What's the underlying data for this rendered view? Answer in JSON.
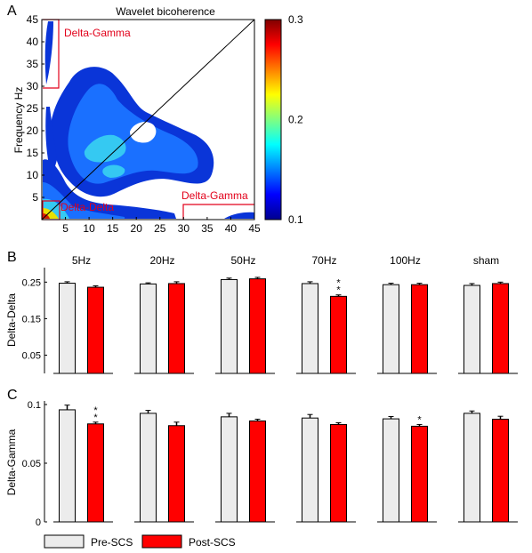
{
  "panels": {
    "a": "A",
    "b": "B",
    "c": "C"
  },
  "colors": {
    "pre": "#ececec",
    "post": "#ff0000",
    "region": "#e2001a",
    "axis": "#000000"
  },
  "heatmap": {
    "title": "Wavelet bicoherence",
    "ylabel": "Frequency Hz",
    "xticks": [
      "5",
      "10",
      "15",
      "20",
      "25",
      "30",
      "35",
      "40",
      "45"
    ],
    "yticks": [
      "5",
      "10",
      "15",
      "20",
      "25",
      "30",
      "35",
      "40",
      "45"
    ],
    "colorbar_ticks": [
      "0.3",
      "0.2",
      "0.1"
    ],
    "colorbar_range": [
      0.1,
      0.3
    ],
    "regions": {
      "gamma_top": "Delta-Gamma",
      "gamma_right": "Delta-Gamma",
      "delta_delta": "Delta-Delta"
    }
  },
  "legend": {
    "pre": "Pre-SCS",
    "post": "Post-SCS"
  },
  "chart_data": [
    {
      "type": "heatmap",
      "title": "Wavelet bicoherence",
      "xlabel": "",
      "ylabel": "Frequency Hz",
      "xlim": [
        0,
        45
      ],
      "ylim": [
        0,
        45
      ],
      "colorbar_range": [
        0.1,
        0.3
      ],
      "regions": [
        {
          "label": "Delta-Gamma",
          "x": [
            0,
            4
          ],
          "y": [
            30,
            45
          ]
        },
        {
          "label": "Delta-Gamma",
          "x": [
            30,
            45
          ],
          "y": [
            0,
            4
          ]
        },
        {
          "label": "Delta-Delta",
          "x": [
            0,
            4
          ],
          "y": [
            0,
            4
          ]
        }
      ]
    },
    {
      "type": "bar",
      "ylabel": "Delta-Delta",
      "categories": [
        "5Hz",
        "20Hz",
        "50Hz",
        "70Hz",
        "100Hz",
        "sham"
      ],
      "yticks": [
        "0.25",
        "0.15",
        "0.05"
      ],
      "ylim": [
        0,
        0.28
      ],
      "series": [
        {
          "name": "Pre-SCS",
          "values": [
            0.247,
            0.245,
            0.257,
            0.246,
            0.243,
            0.241
          ],
          "errors": [
            0.004,
            0.003,
            0.004,
            0.005,
            0.004,
            0.005
          ]
        },
        {
          "name": "Post-SCS",
          "values": [
            0.236,
            0.246,
            0.259,
            0.211,
            0.243,
            0.246
          ],
          "errors": [
            0.004,
            0.005,
            0.004,
            0.004,
            0.004,
            0.004
          ]
        }
      ],
      "significance": [
        null,
        null,
        null,
        "* *",
        null,
        null
      ]
    },
    {
      "type": "bar",
      "ylabel": "Delta-Gamma",
      "categories": [
        "5Hz",
        "20Hz",
        "50Hz",
        "70Hz",
        "100Hz",
        "sham"
      ],
      "yticks": [
        "0.1",
        "0.05",
        "0"
      ],
      "ylim": [
        0,
        0.1
      ],
      "series": [
        {
          "name": "Pre-SCS",
          "values": [
            0.0955,
            0.0925,
            0.0895,
            0.0885,
            0.0878,
            0.0925
          ],
          "errors": [
            0.004,
            0.0025,
            0.003,
            0.003,
            0.002,
            0.002
          ]
        },
        {
          "name": "Post-SCS",
          "values": [
            0.0835,
            0.082,
            0.086,
            0.083,
            0.0815,
            0.0875
          ],
          "errors": [
            0.0015,
            0.003,
            0.0015,
            0.0015,
            0.0015,
            0.0025
          ]
        }
      ],
      "significance": [
        "* *",
        null,
        null,
        null,
        "*",
        null
      ]
    }
  ]
}
